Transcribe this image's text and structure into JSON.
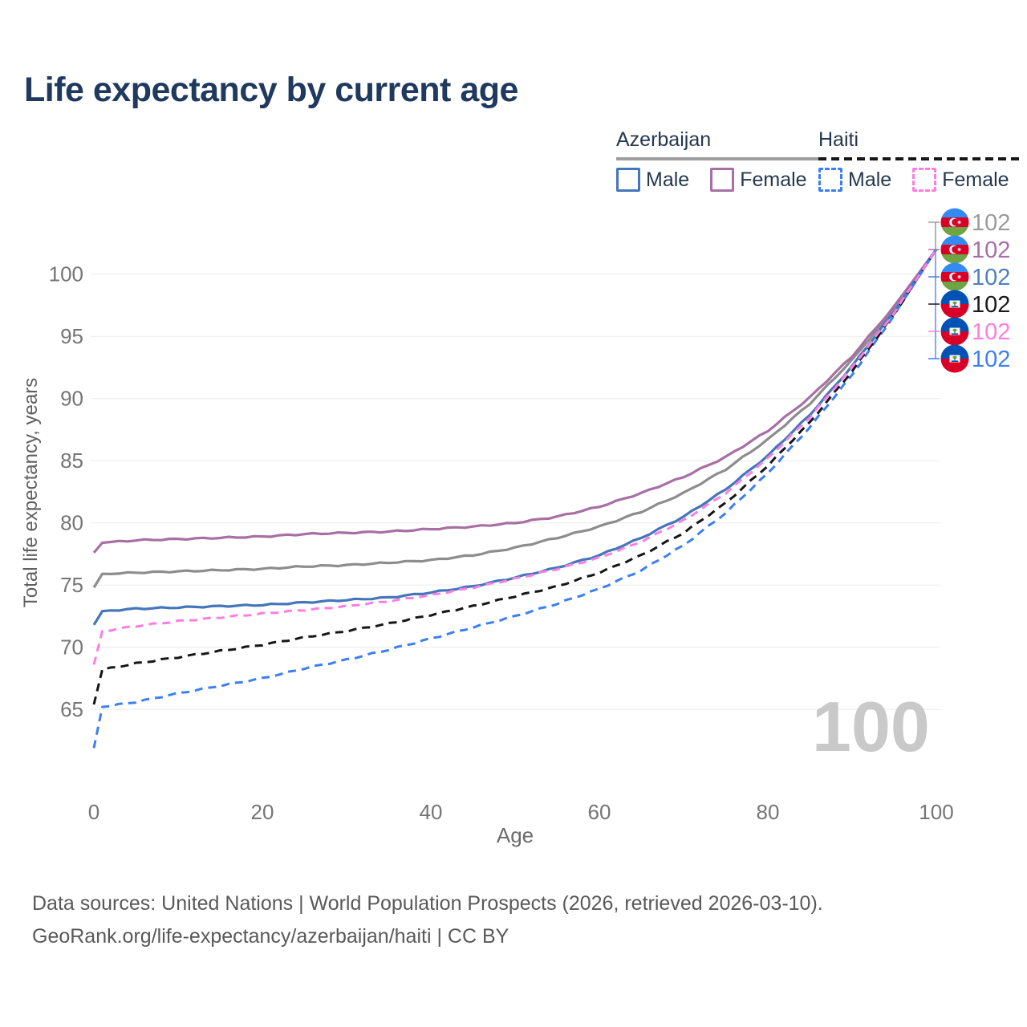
{
  "title": "Life expectancy by current age",
  "legend": {
    "groups": [
      {
        "id": "azerbaijan",
        "label": "Azerbaijan",
        "total_line_style": "solid",
        "total_line_color": "#9e9e9e",
        "items": [
          {
            "label": "Male",
            "color": "#4376ba",
            "line_style": "solid"
          },
          {
            "label": "Female",
            "color": "#a86fa5",
            "line_style": "solid"
          }
        ]
      },
      {
        "id": "haiti",
        "label": "Haiti",
        "total_line_style": "dashed",
        "total_line_color": "#161616",
        "items": [
          {
            "label": "Male",
            "color": "#3c7ff5",
            "line_style": "dashed"
          },
          {
            "label": "Female",
            "color": "#ff7de2",
            "line_style": "dashed"
          }
        ]
      }
    ]
  },
  "chart_data": {
    "type": "line",
    "title": "Life expectancy by current age",
    "xlabel": "Age",
    "ylabel": "Total life expectancy, years",
    "xlim": [
      0,
      100
    ],
    "ylim": [
      61,
      103
    ],
    "x_ticks": [
      0,
      20,
      40,
      60,
      80,
      100
    ],
    "y_ticks": [
      65,
      70,
      75,
      80,
      85,
      90,
      95,
      100
    ],
    "grid": "horizontal",
    "legend_position": "top-right",
    "current_age_label": "100",
    "ages": [
      0,
      1,
      5,
      10,
      15,
      20,
      25,
      30,
      35,
      40,
      45,
      50,
      55,
      60,
      65,
      70,
      75,
      80,
      85,
      90,
      95,
      100
    ],
    "series": [
      {
        "id": "azerbaijan-total",
        "name": "Azerbaijan",
        "sex": "total",
        "country": "az",
        "color": "#8d8d8d",
        "line_style": "solid",
        "values": [
          74.8,
          75.9,
          76.0,
          76.1,
          76.2,
          76.3,
          76.5,
          76.6,
          76.8,
          77.0,
          77.4,
          78.0,
          78.8,
          79.7,
          80.9,
          82.4,
          84.3,
          86.7,
          89.6,
          93.1,
          97.2,
          102
        ]
      },
      {
        "id": "azerbaijan-female",
        "name": "Azerbaijan Female",
        "sex": "female",
        "country": "az",
        "color": "#a86fa5",
        "line_style": "solid",
        "values": [
          77.6,
          78.4,
          78.6,
          78.7,
          78.8,
          78.9,
          79.1,
          79.2,
          79.3,
          79.5,
          79.7,
          80.0,
          80.5,
          81.3,
          82.4,
          83.7,
          85.3,
          87.4,
          90.1,
          93.4,
          97.4,
          102
        ]
      },
      {
        "id": "azerbaijan-male",
        "name": "Azerbaijan Male",
        "sex": "male",
        "country": "az",
        "color": "#4376ba",
        "line_style": "solid",
        "values": [
          71.8,
          72.9,
          73.1,
          73.2,
          73.3,
          73.4,
          73.6,
          73.8,
          74.0,
          74.4,
          74.9,
          75.6,
          76.4,
          77.4,
          78.8,
          80.5,
          82.7,
          85.4,
          88.7,
          92.6,
          97.0,
          102
        ]
      },
      {
        "id": "haiti-male",
        "name": "Haiti Male",
        "sex": "male",
        "country": "ht",
        "color": "#3c7ff5",
        "line_style": "dashed",
        "values": [
          61.9,
          65.2,
          65.6,
          66.3,
          66.9,
          67.5,
          68.3,
          69.0,
          69.8,
          70.7,
          71.6,
          72.5,
          73.5,
          74.7,
          76.2,
          78.2,
          80.8,
          84.0,
          87.7,
          91.9,
          96.7,
          102
        ]
      },
      {
        "id": "haiti-total",
        "name": "Haiti",
        "sex": "total",
        "country": "ht",
        "color": "#161616",
        "line_style": "dashed",
        "values": [
          65.4,
          68.2,
          68.7,
          69.2,
          69.7,
          70.2,
          70.8,
          71.3,
          71.9,
          72.6,
          73.3,
          74.1,
          74.9,
          76.0,
          77.4,
          79.2,
          81.6,
          84.6,
          88.1,
          92.2,
          96.8,
          102
        ]
      },
      {
        "id": "haiti-female",
        "name": "Haiti Female",
        "sex": "female",
        "country": "ht",
        "color": "#ff7de2",
        "line_style": "dashed",
        "values": [
          68.6,
          71.3,
          71.7,
          72.1,
          72.4,
          72.7,
          73.0,
          73.3,
          73.7,
          74.2,
          74.8,
          75.5,
          76.3,
          77.2,
          78.5,
          80.2,
          82.4,
          85.2,
          88.5,
          92.5,
          96.9,
          102
        ]
      }
    ],
    "end_labels": [
      {
        "series_id": "azerbaijan-total",
        "country": "az",
        "value": "102",
        "color": "#9b9b9b"
      },
      {
        "series_id": "azerbaijan-female",
        "country": "az",
        "value": "102",
        "color": "#a86fa5"
      },
      {
        "series_id": "azerbaijan-male",
        "country": "az",
        "value": "102",
        "color": "#4f80c2"
      },
      {
        "series_id": "haiti-total",
        "country": "ht",
        "value": "102",
        "color": "#1a1a1a"
      },
      {
        "series_id": "haiti-female",
        "country": "ht",
        "value": "102",
        "color": "#ff7de2"
      },
      {
        "series_id": "haiti-male",
        "country": "ht",
        "value": "102",
        "color": "#3c7ff5"
      }
    ]
  },
  "footer": {
    "line1": "Data sources: United Nations | World Population Prospects (2026, retrieved 2026-03-10).",
    "line2": "GeoRank.org/life-expectancy/azerbaijan/haiti | CC BY"
  }
}
